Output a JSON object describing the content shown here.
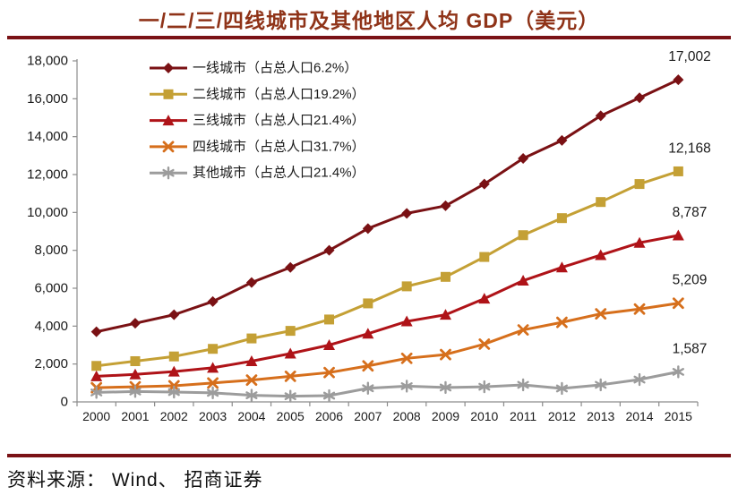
{
  "source": "资料来源： Wind、 招商证券",
  "colors": {
    "title": "#8F3318",
    "rule": "#7A1216",
    "axis": "#8C8C8C",
    "text": "#1A1A1A"
  },
  "chart_data": {
    "type": "line",
    "title": "一/二/三/四线城市及其他地区人均 GDP（美元）",
    "x": [
      "2000",
      "2001",
      "2002",
      "2003",
      "2004",
      "2005",
      "2006",
      "2007",
      "2008",
      "2009",
      "2010",
      "2011",
      "2012",
      "2013",
      "2014",
      "2015"
    ],
    "ylim": [
      0,
      18000
    ],
    "ytick_step": 2000,
    "yticks": [
      "0",
      "2,000",
      "4,000",
      "6,000",
      "8,000",
      "10,000",
      "12,000",
      "14,000",
      "16,000",
      "18,000"
    ],
    "grid": false,
    "legend_position": "top-left",
    "series": [
      {
        "name": "一线城市（占总人口6.2%）",
        "marker": "diamond",
        "color": "#7A1114",
        "end_label": "17,002",
        "values": [
          3700,
          4150,
          4600,
          5300,
          6300,
          7100,
          8000,
          9150,
          9950,
          10350,
          11500,
          12850,
          13800,
          15100,
          16050,
          17002
        ]
      },
      {
        "name": "二线城市（占总人口19.2%）",
        "marker": "square",
        "color": "#C4A035",
        "end_label": "12,168",
        "values": [
          1900,
          2150,
          2400,
          2800,
          3350,
          3750,
          4350,
          5200,
          6100,
          6600,
          7650,
          8800,
          9700,
          10550,
          11500,
          12168
        ]
      },
      {
        "name": "三线城市（占总人口21.4%）",
        "marker": "triangle",
        "color": "#AF1318",
        "end_label": "8,787",
        "values": [
          1350,
          1450,
          1600,
          1800,
          2150,
          2550,
          3000,
          3600,
          4250,
          4600,
          5450,
          6400,
          7100,
          7750,
          8400,
          8787
        ]
      },
      {
        "name": "四线城市（占总人口31.7%）",
        "marker": "x",
        "color": "#D66F1C",
        "end_label": "5,209",
        "values": [
          750,
          800,
          850,
          1000,
          1150,
          1350,
          1550,
          1900,
          2300,
          2500,
          3050,
          3800,
          4200,
          4650,
          4900,
          5209
        ]
      },
      {
        "name": "其他城市（占总人口21.4%）",
        "marker": "asterisk",
        "color": "#9C9C9C",
        "end_label": "1,587",
        "values": [
          500,
          550,
          520,
          480,
          350,
          300,
          330,
          720,
          830,
          760,
          800,
          900,
          710,
          900,
          1180,
          1587
        ]
      }
    ]
  }
}
